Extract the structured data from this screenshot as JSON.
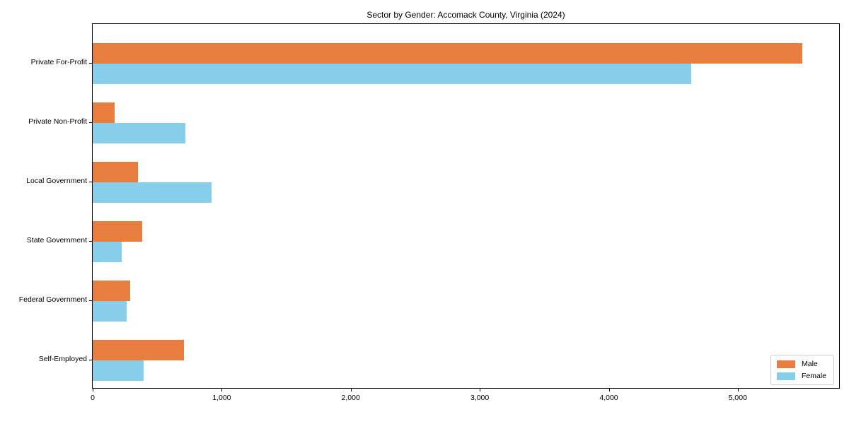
{
  "chart_data": {
    "type": "bar",
    "orientation": "horizontal",
    "title": "Sector by Gender: Accomack County, Virginia (2024)",
    "xlabel": "",
    "ylabel": "",
    "categories": [
      "Private For-Profit",
      "Private Non-Profit",
      "Local Government",
      "State Government",
      "Federal Government",
      "Self-Employed"
    ],
    "series": [
      {
        "name": "Male",
        "color": "#E77E40",
        "values": [
          5500,
          172,
          348,
          386,
          293,
          709
        ]
      },
      {
        "name": "Female",
        "color": "#87CEEB",
        "values": [
          4640,
          718,
          919,
          222,
          262,
          395
        ]
      }
    ],
    "xlim": [
      0,
      5785
    ],
    "xticks": {
      "values": [
        0,
        1000,
        2000,
        3000,
        4000,
        5000
      ],
      "labels": [
        "0",
        "1,000",
        "2,000",
        "3,000",
        "4,000",
        "5,000"
      ]
    },
    "grid": false,
    "legend": {
      "position": "lower right",
      "entries": [
        "Male",
        "Female"
      ]
    }
  }
}
